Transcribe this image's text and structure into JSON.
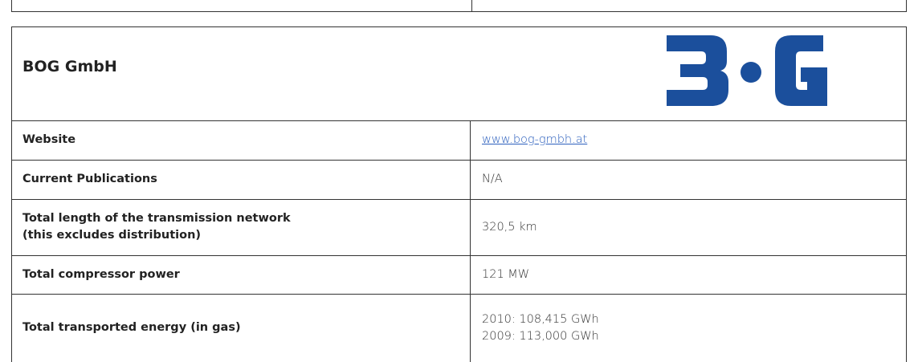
{
  "header": {
    "title": "BOG  GmbH"
  },
  "table": {
    "rows": [
      {
        "label": [
          "Website"
        ],
        "value": [
          "www.bog-gmbh.at"
        ],
        "link": true
      },
      {
        "label": [
          "Current Publications"
        ],
        "value": [
          "N/A"
        ]
      },
      {
        "label": [
          "Total length of the transmission network",
          "(this excludes distribution)"
        ],
        "value": [
          "320,5 km"
        ]
      },
      {
        "label": [
          "Total compressor power"
        ],
        "value": [
          "121 MW"
        ]
      },
      {
        "label": [
          "Total transported energy (in gas)"
        ],
        "value": [
          "2010:  108,415 GWh",
          "2009:  113,000 GWh"
        ]
      }
    ]
  }
}
